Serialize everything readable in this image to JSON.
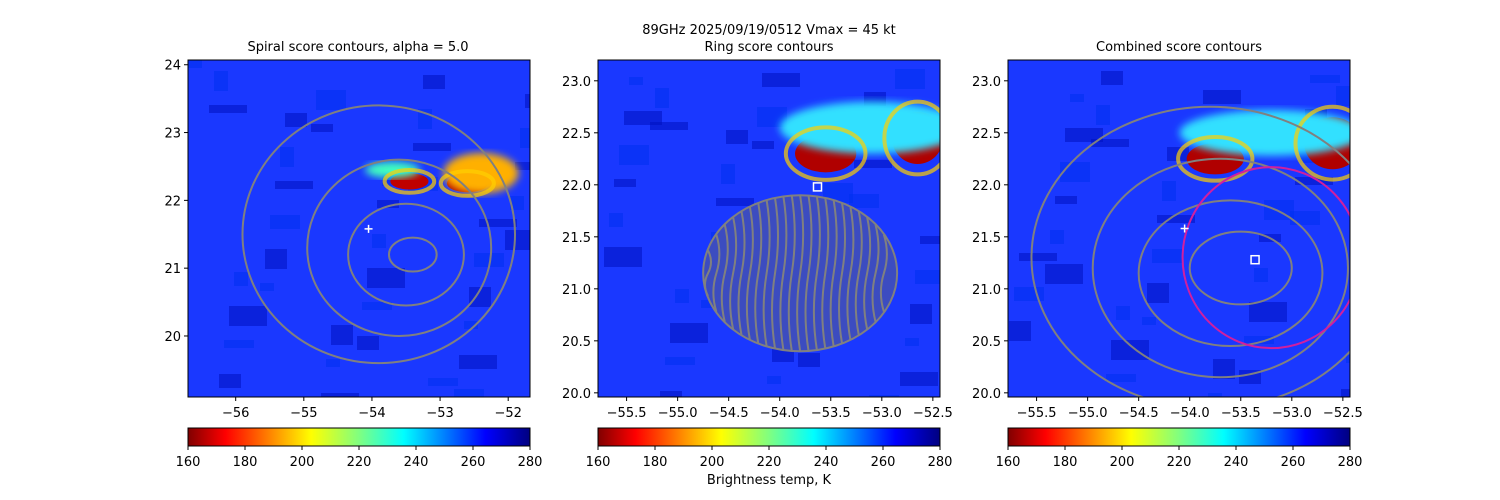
{
  "suptitle": "89GHz  2025/09/19/0512    Vmax = 45 kt",
  "colorbar_label": "Brightness temp, K",
  "colors": {
    "background": "#1a38ff",
    "contour": "#808080",
    "circle": "#d01fa0",
    "marker": "#ffffff"
  },
  "chart_data": [
    {
      "type": "heatmap",
      "title": "Spiral score contours, alpha =  5.0",
      "xlim": [
        -56.7,
        -51.68
      ],
      "ylim": [
        19.1,
        24.07
      ],
      "xticks": [
        -56,
        -55,
        -54,
        -53,
        -52
      ],
      "xtick_labels": [
        "−56",
        "−55",
        "−54",
        "−53",
        "−52"
      ],
      "yticks": [
        20,
        21,
        22,
        23,
        24
      ],
      "ytick_labels": [
        "20",
        "21",
        "22",
        "23",
        "24"
      ],
      "warm_features": [
        {
          "x": -53.45,
          "y": 22.28,
          "rx": 0.28,
          "ry": 0.12,
          "color": "#c00000"
        },
        {
          "x": -52.6,
          "y": 22.25,
          "rx": 0.3,
          "ry": 0.13,
          "color": "#b00000"
        },
        {
          "x": -52.4,
          "y": 22.4,
          "rx": 0.55,
          "ry": 0.3,
          "color": "#ffb000"
        },
        {
          "x": -53.7,
          "y": 22.45,
          "rx": 0.4,
          "ry": 0.12,
          "color": "#40ffc0"
        }
      ],
      "contours": [
        {
          "x": -53.4,
          "y": 21.2,
          "rx": 0.35,
          "ry": 0.25
        },
        {
          "x": -53.5,
          "y": 21.2,
          "rx": 0.85,
          "ry": 0.75
        },
        {
          "x": -53.6,
          "y": 21.3,
          "rx": 1.35,
          "ry": 1.3
        },
        {
          "x": -53.9,
          "y": 21.5,
          "rx": 2.0,
          "ry": 1.9
        }
      ],
      "markers": [
        {
          "type": "plus",
          "x": -54.05,
          "y": 21.58
        }
      ],
      "circle": null,
      "colorbar": {
        "vmin": 160,
        "vmax": 280,
        "ticks": [
          "160",
          "180",
          "200",
          "220",
          "240",
          "260",
          "280"
        ]
      }
    },
    {
      "type": "heatmap",
      "title": "Ring score contours",
      "xlim": [
        -55.78,
        -52.43
      ],
      "ylim": [
        19.96,
        23.2
      ],
      "xticks": [
        -55.5,
        -55.0,
        -54.5,
        -54.0,
        -53.5,
        -53.0,
        -52.5
      ],
      "xtick_labels": [
        "−55.5",
        "−55.0",
        "−54.5",
        "−54.0",
        "−53.5",
        "−53.0",
        "−52.5"
      ],
      "yticks": [
        20.0,
        20.5,
        21.0,
        21.5,
        22.0,
        22.5,
        23.0
      ],
      "ytick_labels": [
        "20.0",
        "20.5",
        "21.0",
        "21.5",
        "22.0",
        "22.5",
        "23.0"
      ],
      "warm_features": [
        {
          "x": -53.55,
          "y": 22.3,
          "rx": 0.3,
          "ry": 0.18,
          "color": "#b00000"
        },
        {
          "x": -52.65,
          "y": 22.45,
          "rx": 0.25,
          "ry": 0.25,
          "color": "#b00000"
        },
        {
          "x": -53.1,
          "y": 22.55,
          "rx": 0.9,
          "ry": 0.25,
          "color": "#30e0ff"
        }
      ],
      "contours": [],
      "hatched_region": {
        "x": -53.8,
        "y": 21.15,
        "rx": 0.95,
        "ry": 0.75
      },
      "markers": [
        {
          "type": "square",
          "x": -53.63,
          "y": 21.98
        }
      ],
      "circle": null,
      "colorbar": {
        "vmin": 160,
        "vmax": 280,
        "ticks": [
          "160",
          "180",
          "200",
          "220",
          "240",
          "260",
          "280"
        ]
      }
    },
    {
      "type": "heatmap",
      "title": "Combined score contours",
      "xlim": [
        -55.78,
        -52.43
      ],
      "ylim": [
        19.96,
        23.2
      ],
      "xticks": [
        -55.5,
        -55.0,
        -54.5,
        -54.0,
        -53.5,
        -53.0,
        -52.5
      ],
      "xtick_labels": [
        "−55.5",
        "−55.0",
        "−54.5",
        "−54.0",
        "−53.5",
        "−53.0",
        "−52.5"
      ],
      "yticks": [
        20.0,
        20.5,
        21.0,
        21.5,
        22.0,
        22.5,
        23.0
      ],
      "ytick_labels": [
        "20.0",
        "20.5",
        "21.0",
        "21.5",
        "22.0",
        "22.5",
        "23.0"
      ],
      "warm_features": [
        {
          "x": -53.75,
          "y": 22.25,
          "rx": 0.28,
          "ry": 0.15,
          "color": "#b00000"
        },
        {
          "x": -52.6,
          "y": 22.4,
          "rx": 0.28,
          "ry": 0.25,
          "color": "#b00000"
        },
        {
          "x": -53.2,
          "y": 22.5,
          "rx": 0.9,
          "ry": 0.22,
          "color": "#30e0ff"
        }
      ],
      "contours": [
        {
          "x": -53.5,
          "y": 21.2,
          "rx": 0.5,
          "ry": 0.35
        },
        {
          "x": -53.6,
          "y": 21.15,
          "rx": 0.9,
          "ry": 0.7
        },
        {
          "x": -53.7,
          "y": 21.2,
          "rx": 1.25,
          "ry": 1.05
        },
        {
          "x": -53.8,
          "y": 21.3,
          "rx": 1.75,
          "ry": 1.45
        }
      ],
      "markers": [
        {
          "type": "plus",
          "x": -54.05,
          "y": 21.58
        },
        {
          "type": "square",
          "x": -53.36,
          "y": 21.28
        }
      ],
      "circle": {
        "x": -53.2,
        "y": 21.3,
        "r": 0.87
      },
      "colorbar": {
        "vmin": 160,
        "vmax": 280,
        "ticks": [
          "160",
          "180",
          "200",
          "220",
          "240",
          "260",
          "280"
        ]
      }
    }
  ]
}
